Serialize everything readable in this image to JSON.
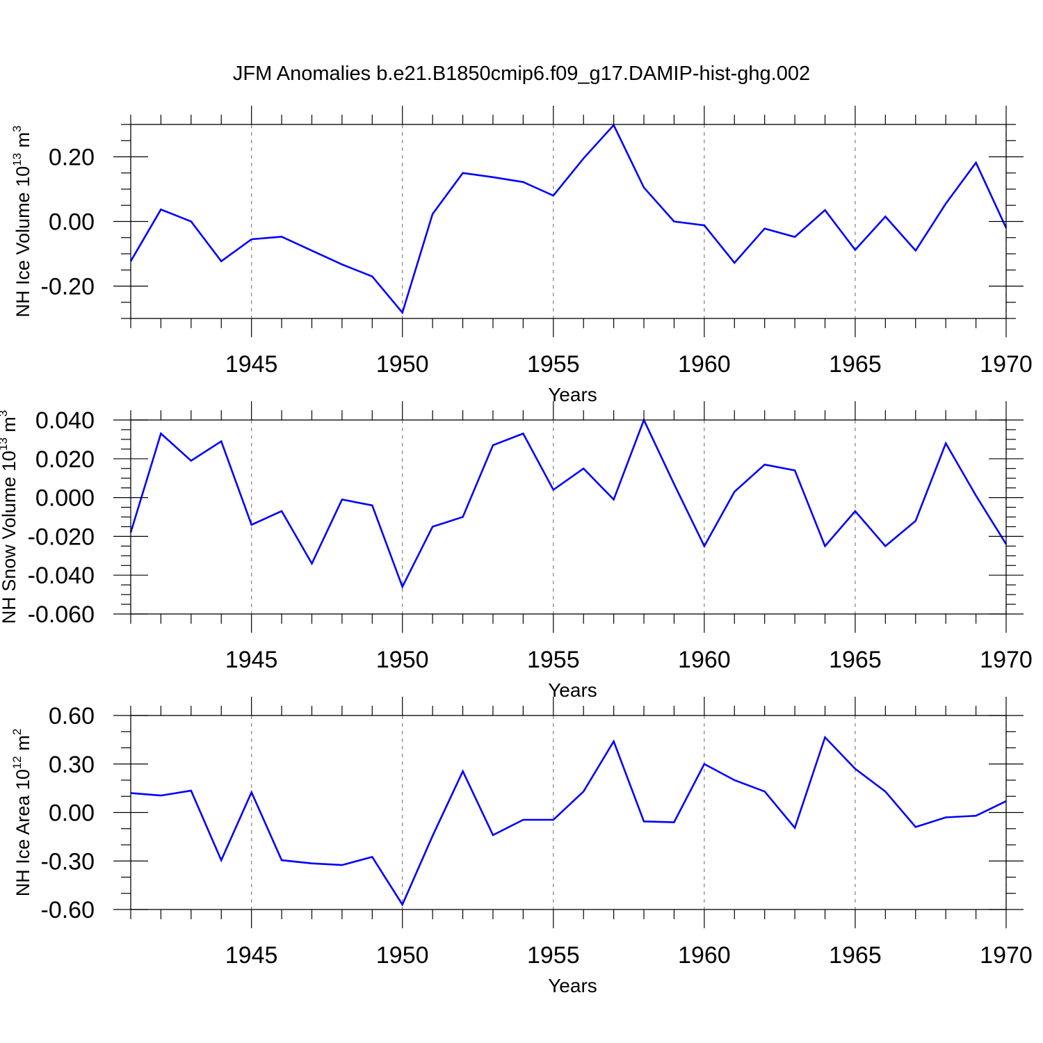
{
  "figure": {
    "title": "JFM Anomalies b.e21.B1850cmip6.f09_g17.DAMIP-hist-ghg.002",
    "line_color": "#0000ff",
    "axis_color": "#000000",
    "grid_color": "#7f7f7f"
  },
  "chart_data": [
    {
      "type": "line",
      "title": "JFM Anomalies b.e21.B1850cmip6.f09_g17.DAMIP-hist-ghg.002",
      "xlabel": "Years",
      "ylabel": "NH Ice Volume 10",
      "ylabel_exp": "13",
      "ylabel_unit": " m",
      "ylabel_unit_exp": "3",
      "xlim": [
        1941,
        1970
      ],
      "ylim": [
        -0.3,
        0.3
      ],
      "x_ticks": [
        1945,
        1950,
        1955,
        1960,
        1965,
        1970
      ],
      "x_tick_labels": [
        "1945",
        "1950",
        "1955",
        "1960",
        "1965",
        "1970"
      ],
      "y_ticks": [
        -0.2,
        0.0,
        0.2
      ],
      "y_tick_labels": [
        "-0.20",
        "0.00",
        "0.20"
      ],
      "y_minor_step": 0.05,
      "x_grid": "dashed at major ticks",
      "series": [
        {
          "name": "NH Ice Volume",
          "x": [
            1941,
            1942,
            1943,
            1944,
            1945,
            1946,
            1947,
            1948,
            1949,
            1950,
            1951,
            1952,
            1953,
            1954,
            1955,
            1956,
            1957,
            1958,
            1959,
            1960,
            1961,
            1962,
            1963,
            1964,
            1965,
            1966,
            1967,
            1968,
            1969,
            1970
          ],
          "values": [
            -0.123,
            0.037,
            0.0,
            -0.123,
            -0.055,
            -0.047,
            -0.09,
            -0.133,
            -0.17,
            -0.282,
            0.023,
            0.15,
            0.137,
            0.122,
            0.08,
            0.195,
            0.298,
            0.105,
            0.0,
            -0.012,
            -0.128,
            -0.022,
            -0.048,
            0.035,
            -0.088,
            0.015,
            -0.09,
            0.055,
            0.182,
            -0.02
          ]
        }
      ]
    },
    {
      "type": "line",
      "xlabel": "Years",
      "ylabel": "NH Snow Volume 10",
      "ylabel_exp": "13",
      "ylabel_unit": " m",
      "ylabel_unit_exp": "3",
      "xlim": [
        1941,
        1970
      ],
      "ylim": [
        -0.06,
        0.04
      ],
      "x_ticks": [
        1945,
        1950,
        1955,
        1960,
        1965,
        1970
      ],
      "x_tick_labels": [
        "1945",
        "1950",
        "1955",
        "1960",
        "1965",
        "1970"
      ],
      "y_ticks": [
        -0.06,
        -0.04,
        -0.02,
        0.0,
        0.02,
        0.04
      ],
      "y_tick_labels": [
        "-0.060",
        "-0.040",
        "-0.020",
        "0.000",
        "0.020",
        "0.040"
      ],
      "y_minor_step": 0.005,
      "x_grid": "dashed at major ticks",
      "series": [
        {
          "name": "NH Snow Volume",
          "x": [
            1941,
            1942,
            1943,
            1944,
            1945,
            1946,
            1947,
            1948,
            1949,
            1950,
            1951,
            1952,
            1953,
            1954,
            1955,
            1956,
            1957,
            1958,
            1959,
            1960,
            1961,
            1962,
            1963,
            1964,
            1965,
            1966,
            1967,
            1968,
            1969,
            1970
          ],
          "values": [
            -0.018,
            0.033,
            0.019,
            0.029,
            -0.014,
            -0.007,
            -0.034,
            -0.001,
            -0.004,
            -0.046,
            -0.015,
            -0.01,
            0.027,
            0.033,
            0.004,
            0.015,
            -0.001,
            0.04,
            0.007,
            -0.025,
            0.003,
            0.017,
            0.014,
            -0.025,
            -0.007,
            -0.025,
            -0.012,
            0.028,
            0.001,
            -0.024
          ]
        }
      ]
    },
    {
      "type": "line",
      "xlabel": "Years",
      "ylabel": "NH Ice Area 10",
      "ylabel_exp": "12",
      "ylabel_unit": " m",
      "ylabel_unit_exp": "2",
      "xlim": [
        1941,
        1970
      ],
      "ylim": [
        -0.6,
        0.6
      ],
      "x_ticks": [
        1945,
        1950,
        1955,
        1960,
        1965,
        1970
      ],
      "x_tick_labels": [
        "1945",
        "1950",
        "1955",
        "1960",
        "1965",
        "1970"
      ],
      "y_ticks": [
        -0.6,
        -0.3,
        0.0,
        0.3,
        0.6
      ],
      "y_tick_labels": [
        "-0.60",
        "-0.30",
        "0.00",
        "0.30",
        "0.60"
      ],
      "y_minor_step": 0.1,
      "x_grid": "dashed at major ticks",
      "series": [
        {
          "name": "NH Ice Area",
          "x": [
            1941,
            1942,
            1943,
            1944,
            1945,
            1946,
            1947,
            1948,
            1949,
            1950,
            1951,
            1952,
            1953,
            1954,
            1955,
            1956,
            1957,
            1958,
            1959,
            1960,
            1961,
            1962,
            1963,
            1964,
            1965,
            1966,
            1967,
            1968,
            1969,
            1970
          ],
          "values": [
            0.12,
            0.105,
            0.135,
            -0.295,
            0.125,
            -0.295,
            -0.315,
            -0.325,
            -0.275,
            -0.57,
            -0.145,
            0.255,
            -0.14,
            -0.045,
            -0.045,
            0.13,
            0.44,
            -0.055,
            -0.06,
            0.3,
            0.2,
            0.13,
            -0.095,
            0.465,
            0.27,
            0.13,
            -0.09,
            -0.03,
            -0.02,
            0.07
          ]
        }
      ]
    }
  ]
}
